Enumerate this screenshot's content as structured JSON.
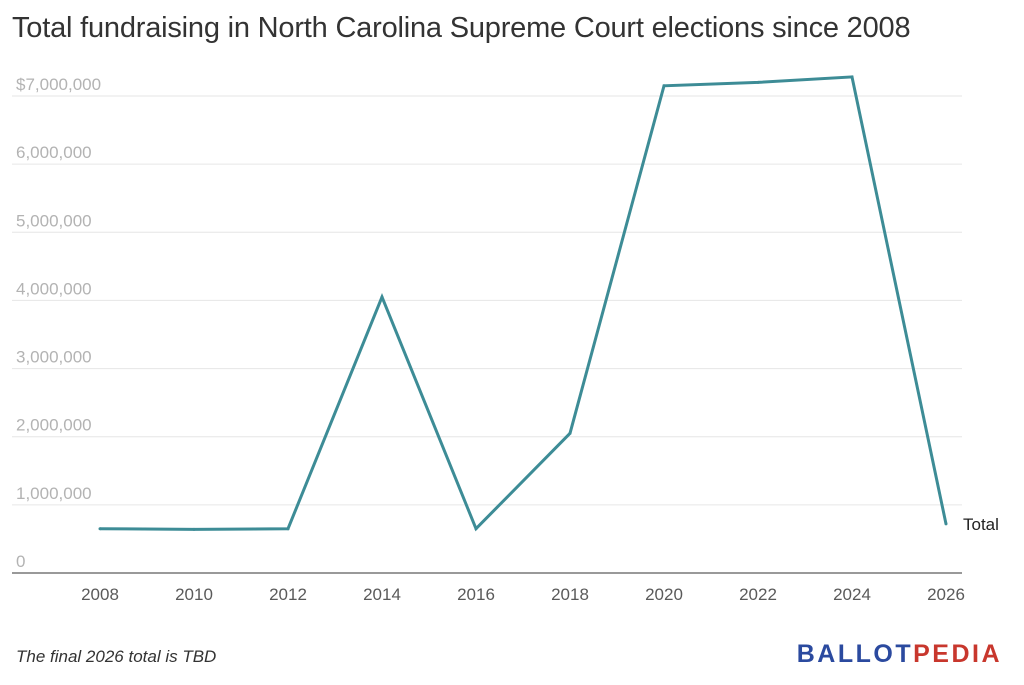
{
  "header": {
    "title": "Total fundraising in North Carolina Supreme Court elections since 2008"
  },
  "footer": {
    "note": "The final 2026 total is TBD",
    "logo_part1": "BALLOT",
    "logo_part2": "PEDIA"
  },
  "colors": {
    "line": "#3d8c96",
    "grid": "#e6e6e6",
    "logo_blue": "#2b4a9f",
    "logo_red": "#c8372d"
  },
  "chart_data": {
    "type": "line",
    "title": "Total fundraising in North Carolina Supreme Court elections since 2008",
    "xlabel": "",
    "ylabel": "",
    "x": [
      2008,
      2010,
      2012,
      2014,
      2016,
      2018,
      2020,
      2022,
      2024,
      2026
    ],
    "series": [
      {
        "name": "Total",
        "values": [
          650000,
          640000,
          650000,
          4050000,
          650000,
          2050000,
          7150000,
          7200000,
          7280000,
          720000
        ]
      }
    ],
    "xticks": [
      "2008",
      "2010",
      "2012",
      "2014",
      "2016",
      "2018",
      "2020",
      "2022",
      "2024",
      "2026"
    ],
    "yticks": [
      {
        "value": 0,
        "label": "0"
      },
      {
        "value": 1000000,
        "label": "1,000,000"
      },
      {
        "value": 2000000,
        "label": "2,000,000"
      },
      {
        "value": 3000000,
        "label": "3,000,000"
      },
      {
        "value": 4000000,
        "label": "4,000,000"
      },
      {
        "value": 5000000,
        "label": "5,000,000"
      },
      {
        "value": 6000000,
        "label": "6,000,000"
      },
      {
        "value": 7000000,
        "label": "$7,000,000"
      }
    ],
    "ylim": [
      0,
      7000000
    ],
    "xlim": [
      2008,
      2026
    ],
    "grid": true,
    "legend": "none (series label at line end)"
  }
}
